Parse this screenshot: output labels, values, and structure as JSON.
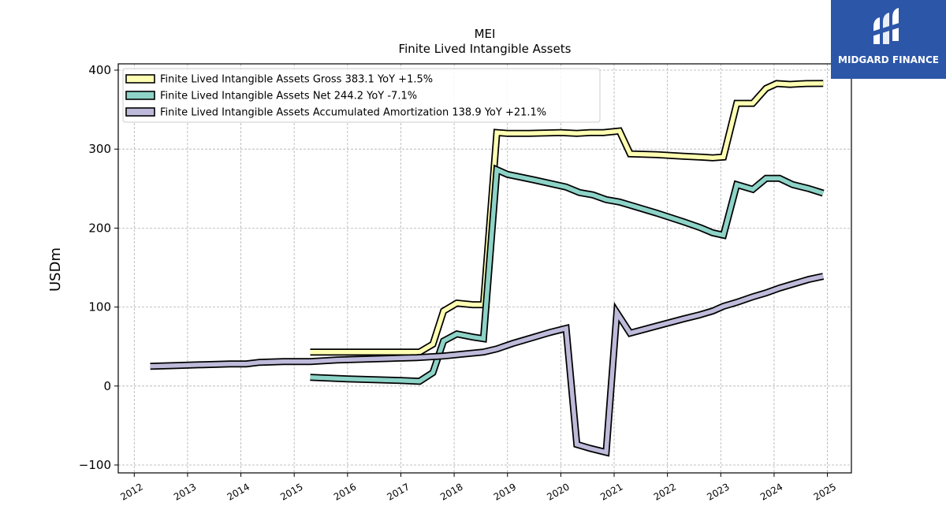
{
  "brand": {
    "name": "MIDGARD FINANCE",
    "color": "#2c56a8"
  },
  "chart_data": {
    "type": "line",
    "title": "MEI",
    "subtitle": "Finite Lived Intangible Assets",
    "ylabel": "USDm",
    "xlabel": "",
    "xlim": [
      2011.7,
      2025.45
    ],
    "ylim": [
      -110,
      408
    ],
    "yticks": [
      -100,
      0,
      100,
      200,
      300,
      400
    ],
    "xticks": [
      2012,
      2013,
      2014,
      2015,
      2016,
      2017,
      2018,
      2019,
      2020,
      2021,
      2022,
      2023,
      2024,
      2025
    ],
    "grid": true,
    "legend_position": "top-left",
    "series": [
      {
        "name": "Finite Lived Intangible Assets Gross  383.1 YoY +1.5%",
        "color": "#ffffb3",
        "points": [
          [
            2015.3,
            43
          ],
          [
            2017.35,
            43
          ],
          [
            2017.6,
            53
          ],
          [
            2017.8,
            95
          ],
          [
            2018.05,
            105
          ],
          [
            2018.35,
            103
          ],
          [
            2018.55,
            103
          ],
          [
            2018.8,
            321
          ],
          [
            2019.0,
            320
          ],
          [
            2019.4,
            320
          ],
          [
            2020.0,
            321
          ],
          [
            2020.3,
            320
          ],
          [
            2020.55,
            321
          ],
          [
            2020.8,
            321
          ],
          [
            2021.1,
            323
          ],
          [
            2021.3,
            294
          ],
          [
            2021.8,
            293
          ],
          [
            2022.3,
            291
          ],
          [
            2022.6,
            290
          ],
          [
            2022.85,
            289
          ],
          [
            2023.05,
            290
          ],
          [
            2023.3,
            358
          ],
          [
            2023.6,
            358
          ],
          [
            2023.85,
            377
          ],
          [
            2024.05,
            383
          ],
          [
            2024.3,
            382
          ],
          [
            2024.6,
            383
          ],
          [
            2024.92,
            383.1
          ]
        ]
      },
      {
        "name": "Finite Lived Intangible Assets Net  244.2 YoY -7.1%",
        "color": "#8dd3c7",
        "points": [
          [
            2015.3,
            11
          ],
          [
            2016.0,
            9
          ],
          [
            2017.0,
            7
          ],
          [
            2017.35,
            6
          ],
          [
            2017.6,
            17
          ],
          [
            2017.8,
            57
          ],
          [
            2018.05,
            66
          ],
          [
            2018.35,
            62
          ],
          [
            2018.55,
            60
          ],
          [
            2018.8,
            274
          ],
          [
            2019.0,
            268
          ],
          [
            2019.5,
            261
          ],
          [
            2020.1,
            252
          ],
          [
            2020.35,
            245
          ],
          [
            2020.6,
            242
          ],
          [
            2020.85,
            236
          ],
          [
            2021.1,
            233
          ],
          [
            2021.35,
            228
          ],
          [
            2021.8,
            219
          ],
          [
            2022.3,
            208
          ],
          [
            2022.6,
            201
          ],
          [
            2022.85,
            194
          ],
          [
            2023.05,
            191
          ],
          [
            2023.3,
            255
          ],
          [
            2023.6,
            249
          ],
          [
            2023.85,
            263
          ],
          [
            2024.1,
            263
          ],
          [
            2024.35,
            255
          ],
          [
            2024.65,
            250
          ],
          [
            2024.92,
            244.2
          ]
        ]
      },
      {
        "name": "Finite Lived Intangible Assets Accumulated Amortization  138.9 YoY +21.1%",
        "color": "#bebada",
        "points": [
          [
            2012.3,
            25
          ],
          [
            2012.8,
            26
          ],
          [
            2013.3,
            27
          ],
          [
            2013.8,
            28
          ],
          [
            2014.1,
            28
          ],
          [
            2014.35,
            30
          ],
          [
            2014.8,
            31
          ],
          [
            2015.3,
            31
          ],
          [
            2015.8,
            33
          ],
          [
            2016.3,
            34
          ],
          [
            2016.8,
            35
          ],
          [
            2017.3,
            36
          ],
          [
            2017.8,
            38
          ],
          [
            2018.1,
            40
          ],
          [
            2018.55,
            43
          ],
          [
            2018.8,
            47
          ],
          [
            2019.1,
            54
          ],
          [
            2019.5,
            62
          ],
          [
            2019.8,
            68
          ],
          [
            2020.1,
            73
          ],
          [
            2020.3,
            -74
          ],
          [
            2020.55,
            -79
          ],
          [
            2020.85,
            -84
          ],
          [
            2021.05,
            93
          ],
          [
            2021.3,
            67
          ],
          [
            2021.8,
            76
          ],
          [
            2022.3,
            85
          ],
          [
            2022.6,
            90
          ],
          [
            2022.85,
            95
          ],
          [
            2023.05,
            101
          ],
          [
            2023.3,
            106
          ],
          [
            2023.6,
            113
          ],
          [
            2023.85,
            118
          ],
          [
            2024.1,
            124
          ],
          [
            2024.35,
            129
          ],
          [
            2024.65,
            135
          ],
          [
            2024.92,
            138.9
          ]
        ]
      }
    ]
  }
}
